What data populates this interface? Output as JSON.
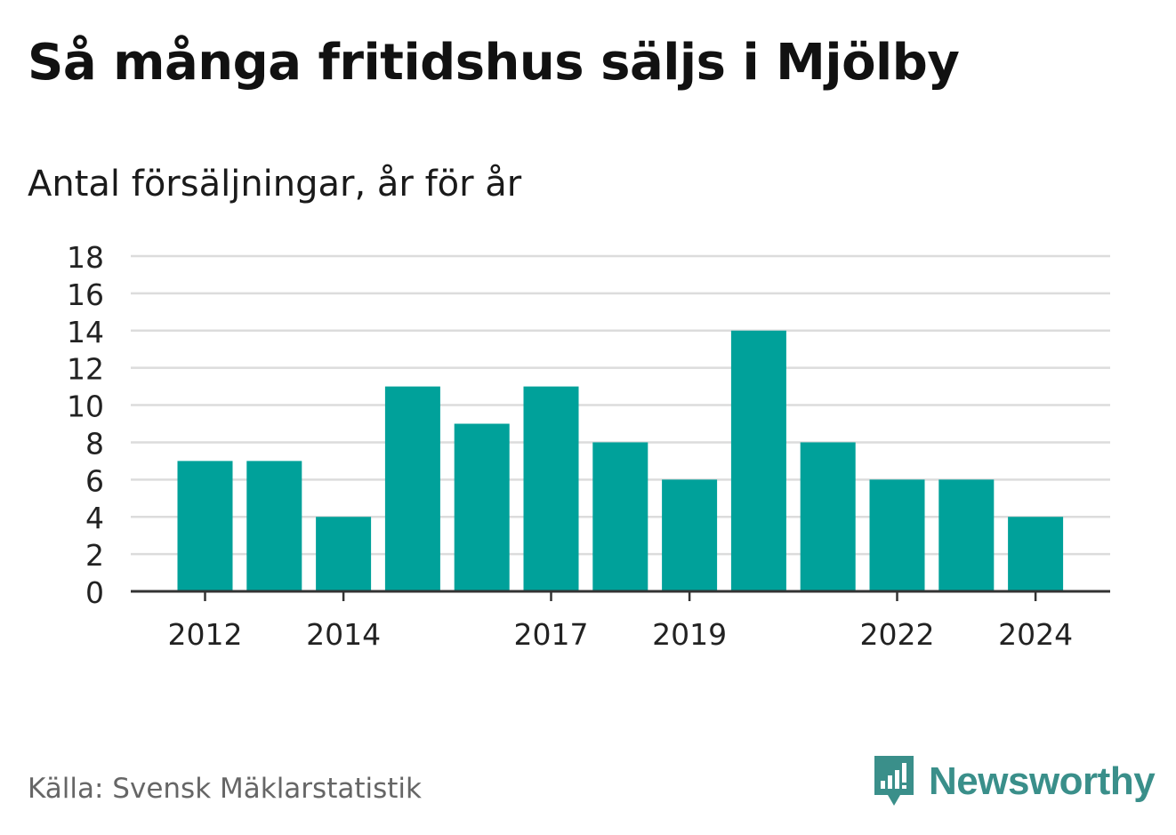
{
  "title": "Så många fritidshus säljs i Mjölby",
  "subtitle": "Antal försäljningar, år för år",
  "source": "Källa: Svensk Mäklarstatistik",
  "brand": {
    "name": "Newsworthy",
    "icon": "newsworthy-logo-icon",
    "color": "#3a8f8a"
  },
  "chart_data": {
    "type": "bar",
    "x": [
      2012,
      2013,
      2014,
      2015,
      2016,
      2017,
      2018,
      2019,
      2020,
      2021,
      2022,
      2023,
      2024
    ],
    "values": [
      7,
      7,
      4,
      11,
      9,
      11,
      8,
      6,
      14,
      8,
      6,
      6,
      4
    ],
    "xticks": [
      "2012",
      "2014",
      "2017",
      "2019",
      "2022",
      "2024"
    ],
    "yticks": [
      0,
      2,
      4,
      6,
      8,
      10,
      12,
      14,
      16,
      18
    ],
    "ylim": [
      0,
      18
    ],
    "grid": true,
    "bar_color": "#00a19a"
  }
}
